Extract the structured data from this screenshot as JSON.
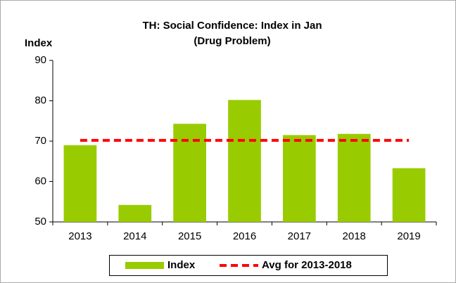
{
  "chart_data": {
    "type": "bar",
    "title": "TH: Social Confidence: Index in Jan",
    "subtitle": "(Drug Problem)",
    "y_label": "Index",
    "categories": [
      "2013",
      "2014",
      "2015",
      "2016",
      "2017",
      "2018",
      "2019"
    ],
    "series": [
      {
        "name": "Index",
        "type": "bar",
        "color": "#99cc00",
        "values": [
          69,
          54.2,
          74.3,
          80.2,
          71.5,
          71.8,
          63.3
        ]
      },
      {
        "name": "Avg for 2013-2018",
        "type": "line",
        "color": "#ff0000",
        "dashed": true,
        "values": [
          70.2,
          70.2,
          70.2,
          70.2,
          70.2,
          70.2,
          70.2
        ]
      }
    ],
    "ylim": [
      50,
      90
    ],
    "yticks": [
      50,
      60,
      70,
      80,
      90
    ],
    "grid": false,
    "legend": "bottom"
  }
}
